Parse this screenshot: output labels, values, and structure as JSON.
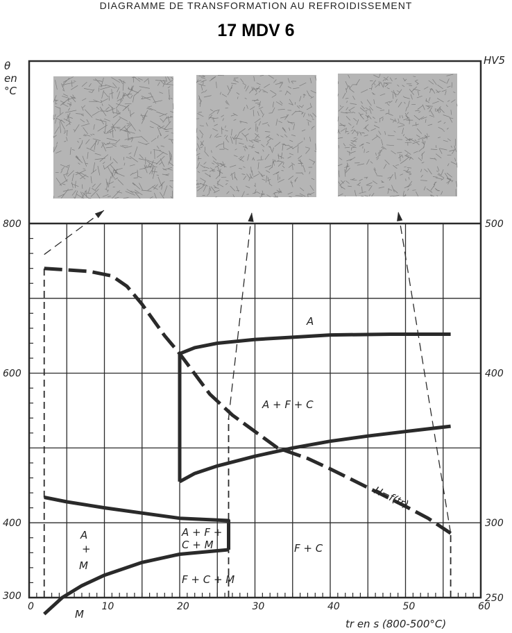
{
  "header": {
    "supertitle": "DIAGRAMME DE TRANSFORMATION AU REFROIDISSEMENT",
    "title": "17 MDV 6"
  },
  "chart_data": {
    "type": "line",
    "title": "17 MDV 6",
    "xlabel": "tr en s (800-500°C)",
    "ylabel": "θ en °C",
    "y2label": "HV5",
    "xlim": [
      0,
      60
    ],
    "ylim": [
      300,
      800
    ],
    "y2lim": [
      250,
      500
    ],
    "xticks": [
      "0",
      "10",
      "20",
      "30",
      "40",
      "50",
      "60"
    ],
    "yticks": [
      "300",
      "400",
      "600",
      "800"
    ],
    "y2ticks": [
      "250",
      "300",
      "400",
      "500"
    ],
    "grid": true,
    "colors": {
      "ink": "#2a2a2a",
      "micrograph": "#b5b5b5"
    },
    "series": [
      {
        "style": "solid",
        "points": [
          [
            20,
            626
          ],
          [
            22,
            634
          ],
          [
            25,
            640
          ],
          [
            30,
            645
          ],
          [
            35,
            648
          ],
          [
            40,
            651
          ],
          [
            48,
            652
          ],
          [
            56,
            652
          ]
        ]
      },
      {
        "style": "solid",
        "points": [
          [
            20,
            455
          ],
          [
            22,
            466
          ],
          [
            25,
            476
          ],
          [
            30,
            489
          ],
          [
            35,
            500
          ],
          [
            40,
            509
          ],
          [
            45,
            516
          ],
          [
            50,
            522
          ],
          [
            56,
            529
          ]
        ]
      },
      {
        "style": "solid",
        "points": [
          [
            20,
            626
          ],
          [
            20,
            455
          ]
        ]
      },
      {
        "style": "solid",
        "points": [
          [
            2,
            434
          ],
          [
            5,
            428
          ],
          [
            10,
            420
          ],
          [
            15,
            413
          ],
          [
            20,
            406
          ],
          [
            26.5,
            403
          ],
          [
            26.5,
            364
          ]
        ]
      },
      {
        "style": "solid",
        "points": [
          [
            2,
            278
          ],
          [
            4.4,
            300
          ],
          [
            7,
            316
          ],
          [
            10,
            330
          ],
          [
            15,
            347
          ],
          [
            20,
            358
          ],
          [
            26.5,
            364
          ]
        ]
      },
      {
        "style": "dashed",
        "points": [
          [
            2,
            300
          ],
          [
            2,
            740
          ]
        ]
      },
      {
        "style": "dashed",
        "points": [
          [
            26.5,
            300
          ],
          [
            26.5,
            540
          ]
        ]
      },
      {
        "style": "dashed",
        "points": [
          [
            56,
            300
          ],
          [
            56,
            386
          ]
        ]
      },
      {
        "name": "H=f(tr)",
        "axis": "y2",
        "style": "dashed-heavy",
        "points": [
          [
            2,
            470
          ],
          [
            8,
            468
          ],
          [
            11,
            465
          ],
          [
            13,
            458
          ],
          [
            15,
            446
          ],
          [
            18,
            425
          ],
          [
            20,
            413
          ],
          [
            24,
            386
          ],
          [
            27,
            372
          ],
          [
            30,
            361
          ],
          [
            33,
            350
          ],
          [
            37,
            343
          ],
          [
            40,
            336
          ],
          [
            46,
            321
          ],
          [
            50,
            311
          ],
          [
            53,
            303
          ],
          [
            56,
            293
          ]
        ]
      }
    ],
    "annotations": [
      "A",
      "A + F + C",
      "A + F + C + M",
      "F + C",
      "F + C + M",
      "A + M",
      "M",
      "H=f(tr)"
    ],
    "micrographs": 3
  }
}
